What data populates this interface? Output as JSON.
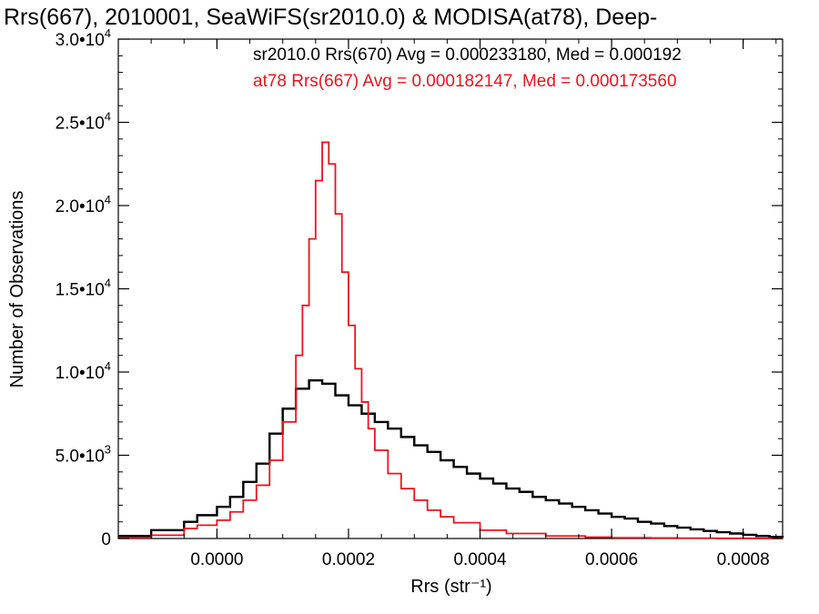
{
  "chart_data": {
    "type": "line",
    "title": "Rrs(667), 2010001, SeaWiFS(sr2010.0) & MODISA(at78), Deep-",
    "xlabel": "Rrs (str⁻¹)",
    "ylabel": "Number of Observations",
    "xlim": [
      -0.00015,
      0.00086
    ],
    "ylim": [
      0,
      30000
    ],
    "x_ticks": [
      {
        "value": 0.0,
        "label": "0.0000"
      },
      {
        "value": 0.0002,
        "label": "0.0002"
      },
      {
        "value": 0.0004,
        "label": "0.0004"
      },
      {
        "value": 0.0006,
        "label": "0.0006"
      },
      {
        "value": 0.0008,
        "label": "0.0008"
      }
    ],
    "y_ticks": [
      {
        "value": 0,
        "mantissa": "0",
        "exponent": ""
      },
      {
        "value": 5000,
        "mantissa": "5.0•10",
        "exponent": "3"
      },
      {
        "value": 10000,
        "mantissa": "1.0•10",
        "exponent": "4"
      },
      {
        "value": 15000,
        "mantissa": "1.5•10",
        "exponent": "4"
      },
      {
        "value": 20000,
        "mantissa": "2.0•10",
        "exponent": "4"
      },
      {
        "value": 25000,
        "mantissa": "2.5•10",
        "exponent": "4"
      },
      {
        "value": 30000,
        "mantissa": "3.0•10",
        "exponent": "4"
      }
    ],
    "annotations": [
      {
        "text": "sr2010.0 Rrs(670) Avg = 0.000233180, Med = 0.000192",
        "color": "#000000"
      },
      {
        "text": "at78 Rrs(667) Avg = 0.000182147, Med = 0.000173560",
        "color": "#e8141c"
      }
    ],
    "series": [
      {
        "color": "#000000",
        "style": "step",
        "x": [
          -0.00015,
          -0.0001,
          -5e-05,
          -3e-05,
          0.0,
          2e-05,
          4e-05,
          6e-05,
          8e-05,
          0.0001,
          0.00012,
          0.00014,
          0.00016,
          0.00018,
          0.0002,
          0.00022,
          0.00024,
          0.00026,
          0.00028,
          0.0003,
          0.00032,
          0.00034,
          0.00036,
          0.00038,
          0.0004,
          0.00042,
          0.00044,
          0.00046,
          0.00048,
          0.0005,
          0.00052,
          0.00054,
          0.00056,
          0.00058,
          0.0006,
          0.00062,
          0.00064,
          0.00066,
          0.00068,
          0.0007,
          0.00072,
          0.00074,
          0.00076,
          0.00078,
          0.0008,
          0.00082,
          0.00084,
          0.00086
        ],
        "values": [
          150,
          500,
          1000,
          1400,
          1900,
          2500,
          3400,
          4500,
          6300,
          7800,
          9000,
          9500,
          9300,
          8600,
          8000,
          7500,
          7000,
          6600,
          6100,
          5600,
          5200,
          4700,
          4300,
          3900,
          3600,
          3300,
          3000,
          2800,
          2500,
          2300,
          2100,
          1900,
          1700,
          1500,
          1300,
          1200,
          1000,
          900,
          750,
          650,
          550,
          450,
          380,
          300,
          220,
          150,
          100,
          60
        ]
      },
      {
        "color": "#e8141c",
        "style": "step",
        "x": [
          -0.00015,
          -0.0001,
          -5e-05,
          -3e-05,
          0.0,
          2e-05,
          4e-05,
          6e-05,
          8e-05,
          0.0001,
          0.00012,
          0.00013,
          0.00014,
          0.00015,
          0.00016,
          0.00017,
          0.00018,
          0.00019,
          0.0002,
          0.00021,
          0.00022,
          0.00023,
          0.00024,
          0.00026,
          0.00028,
          0.0003,
          0.00032,
          0.00034,
          0.00036,
          0.0004,
          0.00044,
          0.0005,
          0.00056,
          0.0006,
          0.00066,
          0.0007,
          0.00076,
          0.00082,
          0.00086
        ],
        "values": [
          50,
          200,
          600,
          800,
          1100,
          1600,
          2300,
          3200,
          4700,
          7000,
          11000,
          14000,
          18000,
          21500,
          23800,
          22500,
          19500,
          16000,
          12800,
          10200,
          8200,
          6600,
          5300,
          3900,
          3000,
          2300,
          1700,
          1300,
          950,
          500,
          300,
          150,
          80,
          50,
          30,
          20,
          10,
          5,
          0
        ]
      }
    ]
  }
}
